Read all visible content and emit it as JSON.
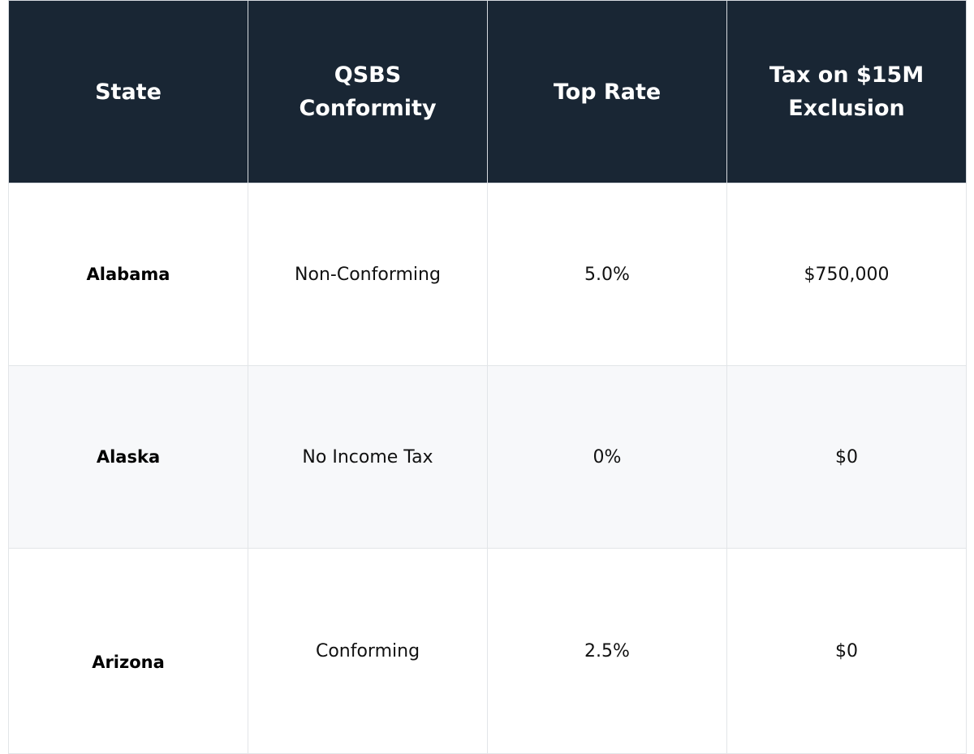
{
  "table": {
    "headers": [
      "State",
      "QSBS Conformity",
      "Top Rate",
      "Tax on $15M Exclusion"
    ],
    "rows": [
      {
        "state": "Alabama",
        "conformity": "Non-Conforming",
        "top_rate": "5.0%",
        "tax": "$750,000"
      },
      {
        "state": "Alaska",
        "conformity": "No Income Tax",
        "top_rate": "0%",
        "tax": "$0"
      },
      {
        "state": "Arizona",
        "conformity": "Conforming",
        "top_rate": "2.5%",
        "tax": "$0"
      }
    ]
  },
  "colors": {
    "header_bg": "#192634",
    "header_text": "#ffffff",
    "alt_row_bg": "#f7f8fa",
    "border": "#e2e5e8"
  }
}
